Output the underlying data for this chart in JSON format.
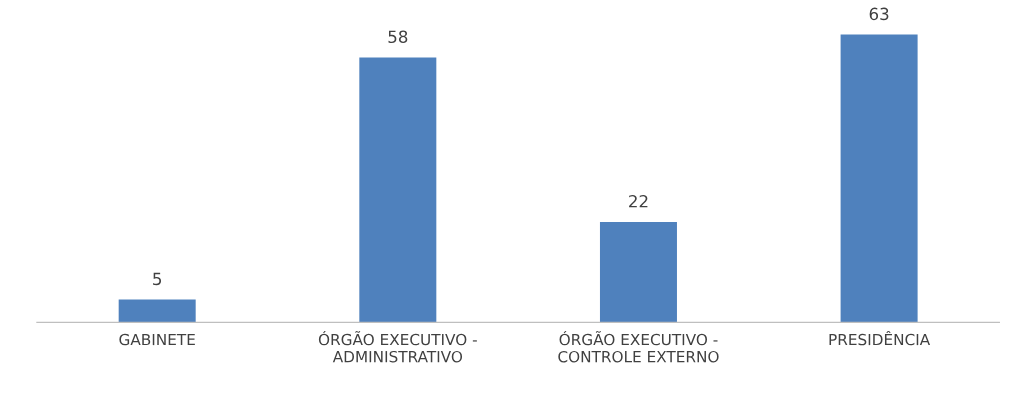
{
  "chart_data": {
    "type": "bar",
    "categories": [
      "GABINETE",
      "ÓRGÃO EXECUTIVO -\nADMINISTRATIVO",
      "ÓRGÃO EXECUTIVO -\nCONTROLE EXTERNO",
      "PRESIDÊNCIA"
    ],
    "values": [
      5,
      58,
      22,
      63
    ],
    "color": "#4f81bd",
    "data_labels": true,
    "grid": false,
    "legend": false
  }
}
